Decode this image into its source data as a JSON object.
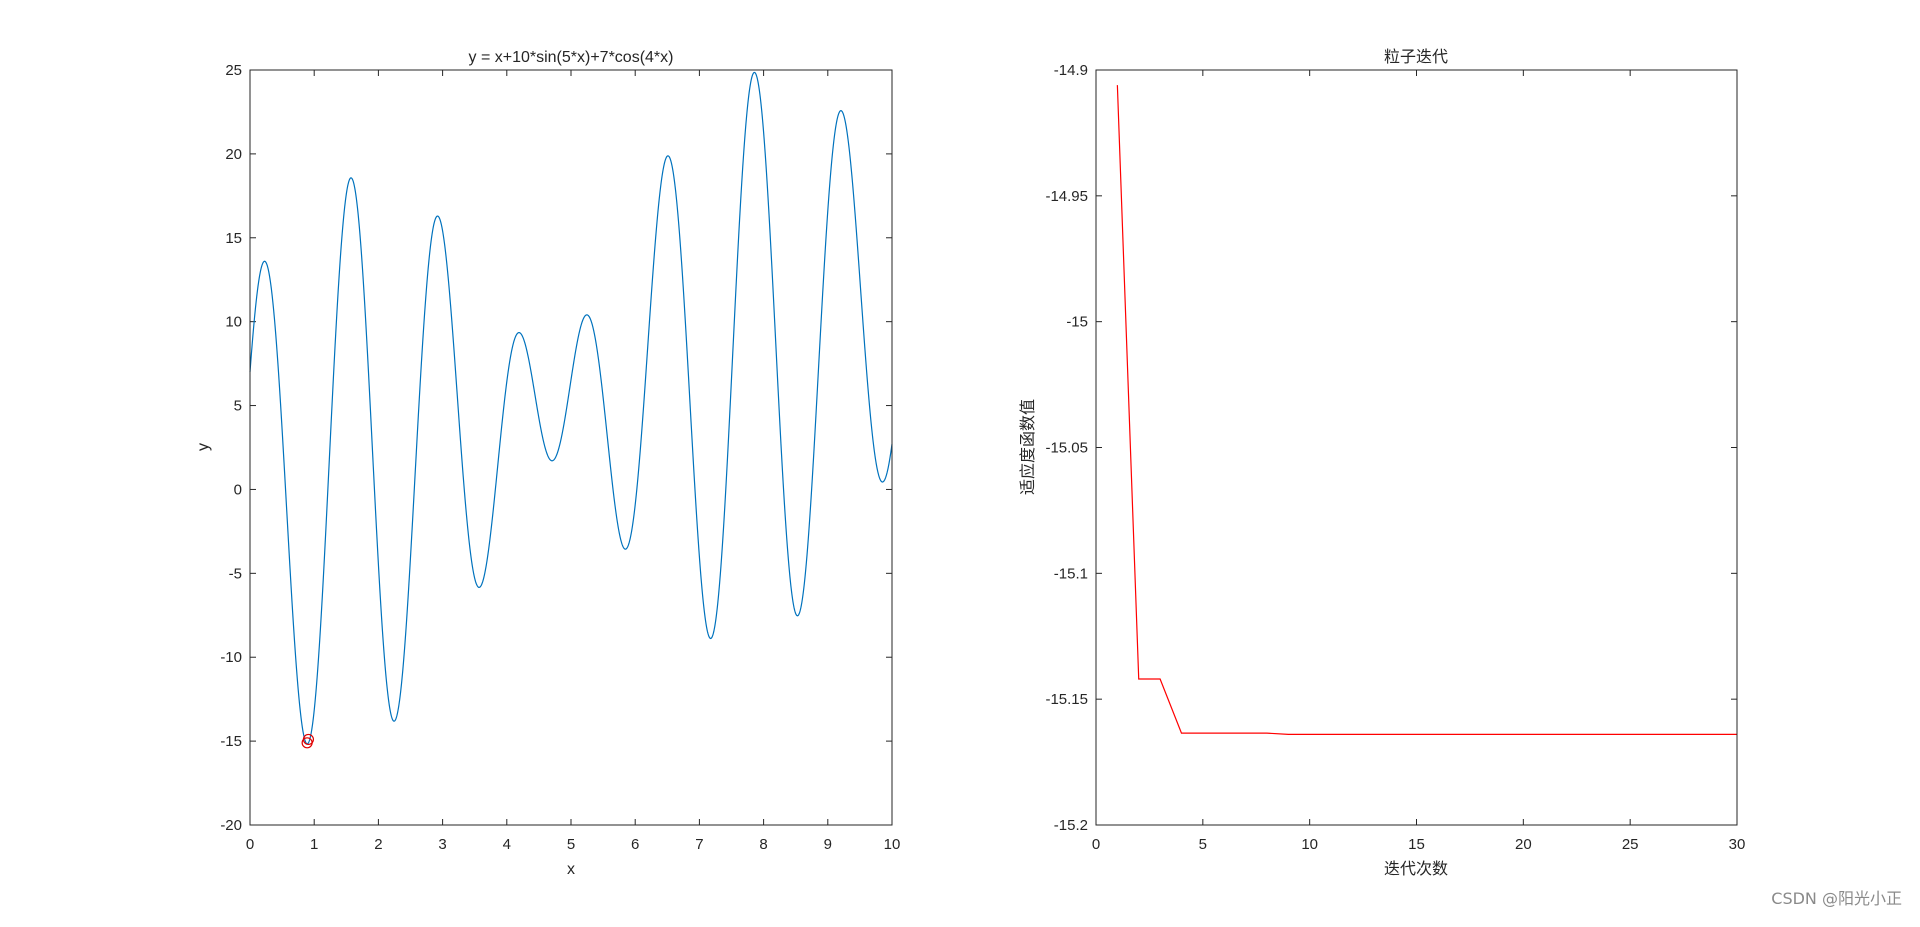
{
  "chart_data": [
    {
      "type": "line",
      "title": "y = x+10*sin(5*x)+7*cos(4*x)",
      "xlabel": "x",
      "ylabel": "y",
      "xlim": [
        0,
        10
      ],
      "ylim": [
        -20,
        25
      ],
      "xticks": [
        0,
        1,
        2,
        3,
        4,
        5,
        6,
        7,
        8,
        9,
        10
      ],
      "yticks": [
        -20,
        -15,
        -10,
        -5,
        0,
        5,
        10,
        15,
        20,
        25
      ],
      "grid": false,
      "series": [
        {
          "color": "#0072BD",
          "expression": "y = x+10*sin(5*x)+7*cos(4*x)",
          "x_range": [
            0,
            10
          ]
        }
      ],
      "markers": [
        {
          "x": 0.89,
          "y": -15.1,
          "marker": "circle",
          "color": "#E00000"
        },
        {
          "x": 0.91,
          "y": -14.9,
          "marker": "circle",
          "color": "#E00000"
        }
      ]
    },
    {
      "type": "line",
      "title": "粒子迭代",
      "xlabel": "迭代次数",
      "ylabel": "适应度函数值",
      "xlim": [
        0,
        30
      ],
      "ylim": [
        -15.2,
        -14.9
      ],
      "xticks": [
        0,
        5,
        10,
        15,
        20,
        25,
        30
      ],
      "yticks": [
        -15.2,
        -15.15,
        -15.1,
        -15.05,
        -15,
        -14.95,
        -14.9
      ],
      "grid": false,
      "series": [
        {
          "color": "#FF0000",
          "x": [
            1,
            2,
            3,
            4,
            5,
            6,
            7,
            8,
            9,
            10,
            11,
            12,
            13,
            14,
            15,
            16,
            17,
            18,
            19,
            20,
            21,
            22,
            23,
            24,
            25,
            26,
            27,
            28,
            29,
            30
          ],
          "y": [
            -14.906,
            -15.142,
            -15.142,
            -15.1635,
            -15.1635,
            -15.1635,
            -15.1635,
            -15.1635,
            -15.164,
            -15.164,
            -15.164,
            -15.164,
            -15.164,
            -15.164,
            -15.164,
            -15.164,
            -15.164,
            -15.164,
            -15.164,
            -15.164,
            -15.164,
            -15.164,
            -15.164,
            -15.164,
            -15.164,
            -15.164,
            -15.164,
            -15.164,
            -15.164,
            -15.164
          ]
        }
      ]
    }
  ],
  "watermark": "CSDN @阳光小正"
}
